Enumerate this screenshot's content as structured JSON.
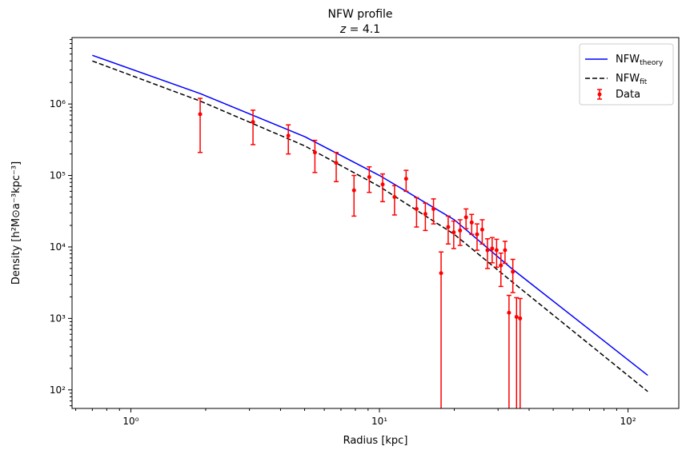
{
  "chart_data": {
    "type": "line",
    "title": "NFW profile",
    "subtitle": "z = 4.1",
    "xlabel": "Radius [kpc]",
    "ylabel": "Density [h²M⊙a⁻³kpc⁻³]",
    "xscale": "log",
    "yscale": "log",
    "xlim": [
      0.58,
      160
    ],
    "ylim": [
      55,
      8500000
    ],
    "x_ticks": [
      {
        "value": 1,
        "label": "10⁰"
      },
      {
        "value": 10,
        "label": "10¹"
      },
      {
        "value": 100,
        "label": "10²"
      }
    ],
    "y_ticks": [
      {
        "value": 100,
        "label": "10²"
      },
      {
        "value": 1000,
        "label": "10³"
      },
      {
        "value": 10000,
        "label": "10⁴"
      },
      {
        "value": 100000,
        "label": "10⁵"
      },
      {
        "value": 1000000,
        "label": "10⁶"
      }
    ],
    "grid": false,
    "legend_position": "top-right",
    "legend": [
      {
        "key": "theory",
        "label": "NFW",
        "sub": "theory"
      },
      {
        "key": "fit",
        "label": "NFW",
        "sub": "fit"
      },
      {
        "key": "data",
        "label": "Data",
        "sub": ""
      }
    ],
    "series": {
      "theory": {
        "color": "#0000ff",
        "style": "solid",
        "points": [
          [
            0.7,
            4800000
          ],
          [
            1.9,
            1400000
          ],
          [
            5,
            350000
          ],
          [
            10,
            100000
          ],
          [
            20,
            24000
          ],
          [
            34,
            5000
          ],
          [
            120,
            160
          ]
        ]
      },
      "fit": {
        "color": "#000000",
        "style": "dashed",
        "points": [
          [
            0.7,
            4000000
          ],
          [
            1.9,
            1100000
          ],
          [
            5,
            260000
          ],
          [
            10,
            70000
          ],
          [
            20,
            15000
          ],
          [
            34,
            3300
          ],
          [
            120,
            95
          ]
        ]
      },
      "data": {
        "color": "#ff0000",
        "points": [
          {
            "x": 1.9,
            "y": 720000,
            "lo": 210000,
            "hi": 1200000
          },
          {
            "x": 3.1,
            "y": 560000,
            "lo": 270000,
            "hi": 820000
          },
          {
            "x": 4.3,
            "y": 360000,
            "lo": 200000,
            "hi": 510000
          },
          {
            "x": 5.5,
            "y": 210000,
            "lo": 110000,
            "hi": 310000
          },
          {
            "x": 6.7,
            "y": 150000,
            "lo": 82000,
            "hi": 210000
          },
          {
            "x": 7.9,
            "y": 62000,
            "lo": 27000,
            "hi": 100000
          },
          {
            "x": 9.1,
            "y": 95000,
            "lo": 58000,
            "hi": 132000
          },
          {
            "x": 10.3,
            "y": 75000,
            "lo": 43000,
            "hi": 105000
          },
          {
            "x": 11.5,
            "y": 50000,
            "lo": 28000,
            "hi": 72000
          },
          {
            "x": 12.8,
            "y": 90000,
            "lo": 60000,
            "hi": 118000
          },
          {
            "x": 14.1,
            "y": 34000,
            "lo": 19000,
            "hi": 49000
          },
          {
            "x": 15.3,
            "y": 29000,
            "lo": 17000,
            "hi": 41000
          },
          {
            "x": 16.5,
            "y": 34000,
            "lo": 21000,
            "hi": 47000
          },
          {
            "x": 17.7,
            "y": 4300,
            "lo": 10,
            "hi": 8500
          },
          {
            "x": 18.9,
            "y": 19000,
            "lo": 11000,
            "hi": 27000
          },
          {
            "x": 19.9,
            "y": 16000,
            "lo": 9500,
            "hi": 23000
          },
          {
            "x": 21.1,
            "y": 17000,
            "lo": 10500,
            "hi": 24000
          },
          {
            "x": 22.3,
            "y": 26000,
            "lo": 18000,
            "hi": 34000
          },
          {
            "x": 23.5,
            "y": 22000,
            "lo": 15000,
            "hi": 28500
          },
          {
            "x": 24.7,
            "y": 15000,
            "lo": 9000,
            "hi": 21000
          },
          {
            "x": 25.9,
            "y": 17500,
            "lo": 11000,
            "hi": 24000
          },
          {
            "x": 27.2,
            "y": 9000,
            "lo": 5000,
            "hi": 13000
          },
          {
            "x": 28.4,
            "y": 9500,
            "lo": 6000,
            "hi": 13500
          },
          {
            "x": 29.6,
            "y": 9000,
            "lo": 5200,
            "hi": 12800
          },
          {
            "x": 30.8,
            "y": 5500,
            "lo": 2800,
            "hi": 8200
          },
          {
            "x": 32.0,
            "y": 9000,
            "lo": 5900,
            "hi": 12000
          },
          {
            "x": 33.2,
            "y": 1200,
            "lo": 10,
            "hi": 2100
          },
          {
            "x": 34.4,
            "y": 4500,
            "lo": 2300,
            "hi": 6700
          },
          {
            "x": 35.6,
            "y": 1050,
            "lo": 10,
            "hi": 1950
          },
          {
            "x": 36.8,
            "y": 1000,
            "lo": 10,
            "hi": 1900
          }
        ]
      }
    }
  }
}
